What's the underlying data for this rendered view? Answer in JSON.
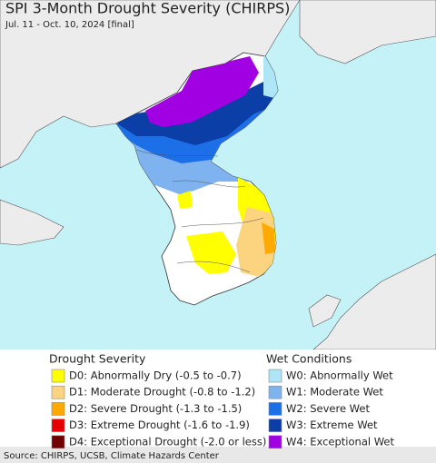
{
  "header": {
    "title": "SPI 3-Month Drought Severity (CHIRPS)",
    "subtitle": "Jul. 11 - Oct. 10, 2024 [final]"
  },
  "legend": {
    "drought": {
      "title": "Drought Severity",
      "items": [
        {
          "label": "D0: Abnormally Dry (-0.5 to -0.7)",
          "color": "#ffff00"
        },
        {
          "label": "D1: Moderate Drought (-0.8 to -1.2)",
          "color": "#fcd37f"
        },
        {
          "label": "D2: Severe Drought (-1.3 to -1.5)",
          "color": "#ffaa00"
        },
        {
          "label": "D3: Extreme Drought (-1.6 to -1.9)",
          "color": "#e60000"
        },
        {
          "label": "D4: Exceptional Drought (-2.0 or less)",
          "color": "#730000"
        }
      ]
    },
    "wet": {
      "title": "Wet Conditions",
      "items": [
        {
          "label": "W0: Abnormally Wet",
          "color": "#aee6f8"
        },
        {
          "label": "W1: Moderate Wet",
          "color": "#7fb3f0"
        },
        {
          "label": "W2: Severe Wet",
          "color": "#1c6fe6"
        },
        {
          "label": "W3: Extreme Wet",
          "color": "#0b3ea6"
        },
        {
          "label": "W4: Exceptional Wet",
          "color": "#a100e3"
        }
      ]
    }
  },
  "footer": {
    "source": "Source: CHIRPS, UCSB, Climate Hazards Center"
  }
}
